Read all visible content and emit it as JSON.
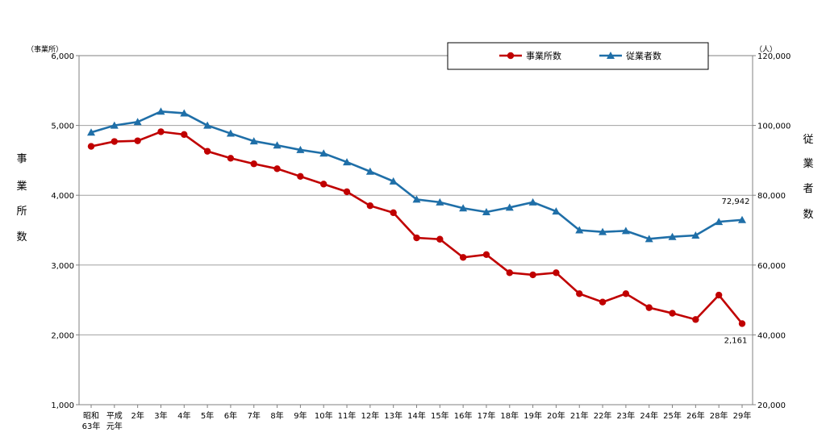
{
  "chart_data": {
    "type": "line",
    "categories": [
      "昭和63年",
      "平成元年",
      "2年",
      "3年",
      "4年",
      "5年",
      "6年",
      "7年",
      "8年",
      "9年",
      "10年",
      "11年",
      "12年",
      "13年",
      "14年",
      "15年",
      "16年",
      "17年",
      "18年",
      "19年",
      "20年",
      "21年",
      "22年",
      "23年",
      "24年",
      "25年",
      "26年",
      "28年",
      "29年"
    ],
    "category_lines": [
      [
        "昭和",
        "63年"
      ],
      [
        "平成",
        "元年"
      ],
      [
        "2年"
      ],
      [
        "3年"
      ],
      [
        "4年"
      ],
      [
        "5年"
      ],
      [
        "6年"
      ],
      [
        "7年"
      ],
      [
        "8年"
      ],
      [
        "9年"
      ],
      [
        "10年"
      ],
      [
        "11年"
      ],
      [
        "12年"
      ],
      [
        "13年"
      ],
      [
        "14年"
      ],
      [
        "15年"
      ],
      [
        "16年"
      ],
      [
        "17年"
      ],
      [
        "18年"
      ],
      [
        "19年"
      ],
      [
        "20年"
      ],
      [
        "21年"
      ],
      [
        "22年"
      ],
      [
        "23年"
      ],
      [
        "24年"
      ],
      [
        "25年"
      ],
      [
        "26年"
      ],
      [
        "28年"
      ],
      [
        "29年"
      ]
    ],
    "series": [
      {
        "name": "事業所数",
        "axis": "left",
        "color": "#c00000",
        "marker": "circle",
        "values": [
          4700,
          4770,
          4780,
          4910,
          4870,
          4630,
          4530,
          4450,
          4380,
          4270,
          4160,
          4050,
          3850,
          3750,
          3390,
          3370,
          3110,
          3150,
          2890,
          2860,
          2890,
          2590,
          2470,
          2590,
          2390,
          2310,
          2220,
          2570,
          2161
        ]
      },
      {
        "name": "従業者数",
        "axis": "right",
        "color": "#1f6fa8",
        "marker": "triangle",
        "values": [
          98000,
          100000,
          101000,
          104000,
          103500,
          100000,
          97700,
          95500,
          94300,
          93000,
          92000,
          89500,
          86800,
          84000,
          78800,
          78000,
          76300,
          75200,
          76500,
          78000,
          75400,
          70000,
          69500,
          69800,
          67500,
          68100,
          68500,
          72400,
          72942
        ]
      }
    ],
    "y_left": {
      "ylim": [
        1000,
        6000
      ],
      "ticks": [
        "1,000",
        "2,000",
        "3,000",
        "4,000",
        "5,000",
        "6,000"
      ],
      "unit": "（事業所）",
      "label_chars": [
        "事",
        "業",
        "所",
        "数"
      ]
    },
    "y_right": {
      "ylim": [
        20000,
        120000
      ],
      "ticks": [
        "20,000",
        "40,000",
        "60,000",
        "80,000",
        "100,000",
        "120,000"
      ],
      "unit": "（人）",
      "label_chars": [
        "従",
        "業",
        "者",
        "数"
      ]
    },
    "annotations": [
      {
        "series": 1,
        "index": 28,
        "text": "72,942"
      },
      {
        "series": 0,
        "index": 28,
        "text": "2,161"
      }
    ],
    "legend_position": "top-right",
    "grid": true
  }
}
